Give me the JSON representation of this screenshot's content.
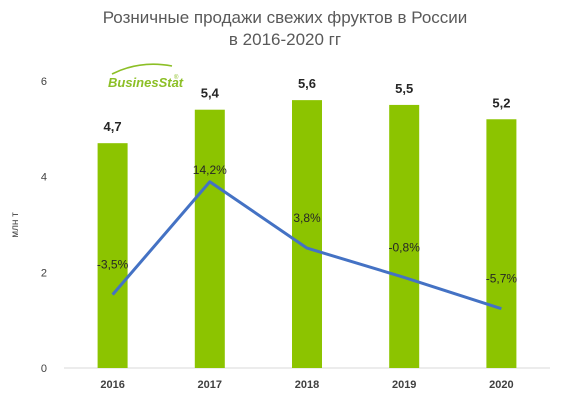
{
  "logo": {
    "text": "BusinesStat",
    "mark": "®"
  },
  "chart_data": {
    "type": "bar",
    "title": [
      "Розничные продажи свежих фруктов в России",
      "в 2016-2020 гг"
    ],
    "ylabel": "млн т",
    "xlabel": "",
    "categories": [
      "2016",
      "2017",
      "2018",
      "2019",
      "2020"
    ],
    "ylim": [
      0,
      6
    ],
    "yticks": [
      "0",
      "2",
      "4",
      "6"
    ],
    "yticks_values": [
      0,
      2,
      4,
      6
    ],
    "grid": false,
    "legend": "none",
    "series": [
      {
        "type": "bar",
        "values": [
          4.7,
          5.4,
          5.6,
          5.5,
          5.2
        ],
        "labels": [
          "4,7",
          "5,4",
          "5,6",
          "5,5",
          "5,2"
        ],
        "color": "#8cc400"
      },
      {
        "type": "line",
        "values": [
          -3.5,
          14.2,
          3.8,
          -0.8,
          -5.7
        ],
        "labels": [
          "-3,5%",
          "14,2%",
          "3,8%",
          "-0,8%",
          "-5,7%"
        ],
        "unit": "%",
        "color": "#4472c4",
        "axis": "secondary-hidden"
      }
    ]
  }
}
